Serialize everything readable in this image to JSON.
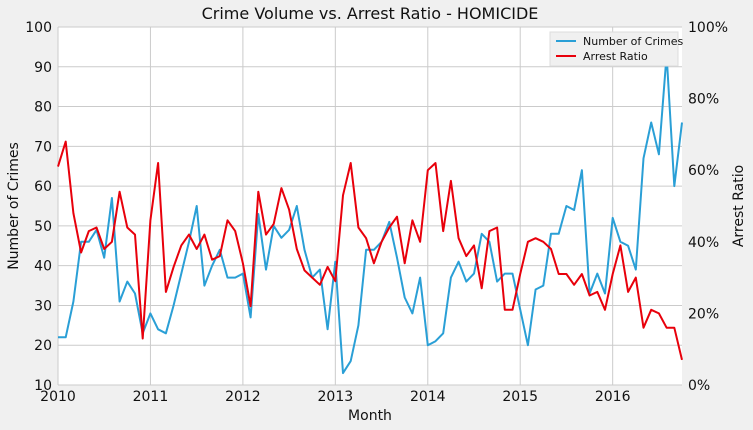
{
  "chart_data": {
    "type": "line",
    "title": "Crime Volume vs. Arrest Ratio - HOMICIDE",
    "xlabel": "Month",
    "ylabel": "Number of Crimes",
    "y2label": "Arrest Ratio",
    "ylim": [
      10,
      100
    ],
    "y2lim": [
      0,
      100
    ],
    "yticks": [
      "10",
      "20",
      "30",
      "40",
      "50",
      "60",
      "70",
      "80",
      "90",
      "100"
    ],
    "y2ticks": [
      "0%",
      "20%",
      "40%",
      "60%",
      "80%",
      "100%"
    ],
    "xticks": [
      "2010",
      "2011",
      "2012",
      "2013",
      "2014",
      "2015",
      "2016"
    ],
    "x_start": "2010-01",
    "x_end": "2016-10",
    "grid": true,
    "legend_position": "top-right",
    "series": [
      {
        "name": "Number of Crimes",
        "axis": "left",
        "color": "#2a9fd6",
        "values": [
          22,
          22,
          31,
          46,
          46,
          49,
          42,
          57,
          31,
          36,
          33,
          23,
          28,
          24,
          23,
          30,
          38,
          46,
          55,
          35,
          40,
          44,
          37,
          37,
          38,
          27,
          53,
          39,
          50,
          47,
          49,
          55,
          44,
          37,
          39,
          24,
          41,
          13,
          16,
          25,
          44,
          44,
          46,
          51,
          42,
          32,
          28,
          37,
          20,
          21,
          23,
          37,
          41,
          36,
          38,
          48,
          46,
          36,
          38,
          38,
          29,
          20,
          34,
          35,
          48,
          48,
          55,
          54,
          64,
          33,
          38,
          33,
          52,
          46,
          45,
          39,
          67,
          76,
          68,
          93,
          60,
          76
        ]
      },
      {
        "name": "Arrest Ratio",
        "axis": "right",
        "color": "#e8000b",
        "values": [
          61,
          68,
          48,
          37,
          43,
          44,
          38,
          40,
          54,
          44,
          42,
          13,
          46,
          62,
          26,
          33,
          39,
          42,
          38,
          42,
          35,
          36,
          46,
          43,
          34,
          22,
          54,
          42,
          45,
          55,
          49,
          38,
          32,
          30,
          28,
          33,
          29,
          53,
          62,
          44,
          41,
          34,
          40,
          44,
          47,
          34,
          46,
          40,
          60,
          62,
          43,
          57,
          41,
          36,
          39,
          27,
          43,
          44,
          21,
          21,
          31,
          40,
          41,
          40,
          38,
          31,
          31,
          28,
          31,
          25,
          26,
          21,
          31,
          39,
          26,
          30,
          16,
          21,
          20,
          16,
          16,
          7
        ]
      }
    ]
  }
}
